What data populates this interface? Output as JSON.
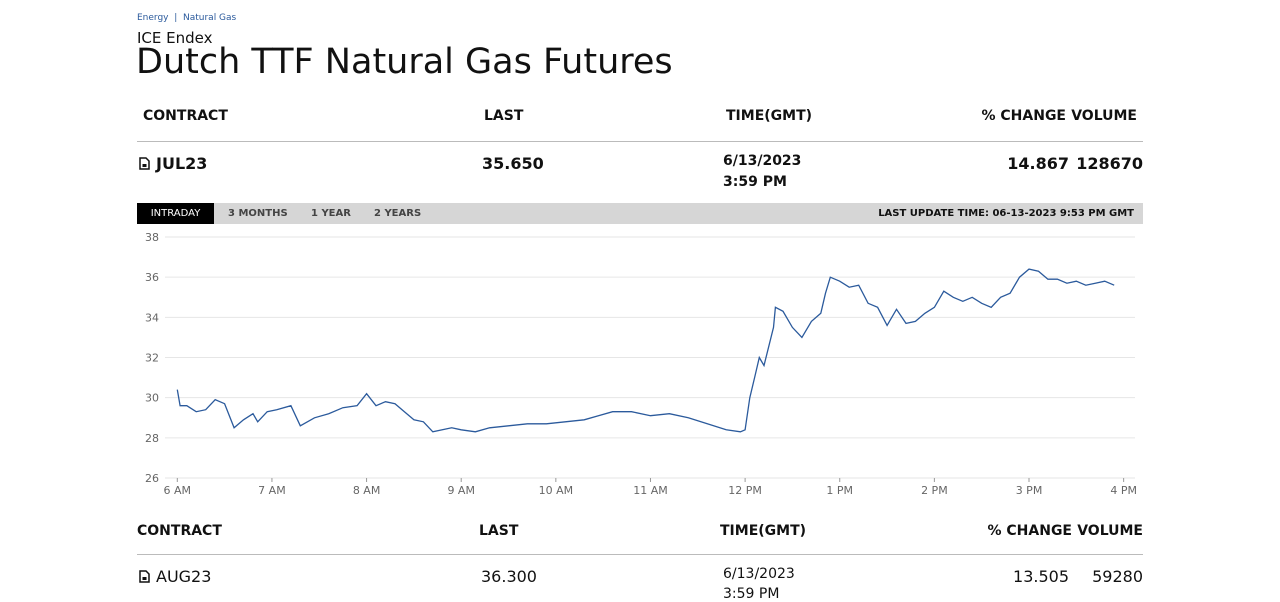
{
  "breadcrumb": [
    "Energy",
    "Natural Gas"
  ],
  "exchange": "ICE Endex",
  "title": "Dutch TTF Natural Gas Futures",
  "table": {
    "headers": [
      "CONTRACT",
      "LAST",
      "TIME(GMT)",
      "% CHANGE",
      "VOLUME"
    ],
    "row": {
      "contract": "JUL23",
      "last": "35.650",
      "date": "6/13/2023",
      "time": "3:59 PM",
      "change": "14.867",
      "volume": "128670"
    }
  },
  "tabs": [
    "INTRADAY",
    "3 MONTHS",
    "1 YEAR",
    "2 YEARS"
  ],
  "last_update": "LAST UPDATE TIME: 06-13-2023 9:53 PM GMT",
  "chart_data": {
    "type": "line",
    "x": [
      6.0,
      6.03,
      6.1,
      6.2,
      6.3,
      6.4,
      6.5,
      6.6,
      6.7,
      6.8,
      6.85,
      6.95,
      7.05,
      7.2,
      7.3,
      7.45,
      7.6,
      7.75,
      7.9,
      8.0,
      8.1,
      8.2,
      8.3,
      8.4,
      8.5,
      8.6,
      8.7,
      8.9,
      9.0,
      9.15,
      9.3,
      9.5,
      9.7,
      9.9,
      10.1,
      10.3,
      10.45,
      10.6,
      10.8,
      11.0,
      11.2,
      11.4,
      11.6,
      11.8,
      11.95,
      12.0,
      12.05,
      12.1,
      12.15,
      12.2,
      12.3,
      12.32,
      12.4,
      12.5,
      12.6,
      12.7,
      12.8,
      12.85,
      12.9,
      13.0,
      13.1,
      13.2,
      13.3,
      13.4,
      13.5,
      13.6,
      13.7,
      13.8,
      13.9,
      14.0,
      14.1,
      14.2,
      14.3,
      14.4,
      14.5,
      14.6,
      14.7,
      14.8,
      14.9,
      15.0,
      15.1,
      15.2,
      15.3,
      15.4,
      15.5,
      15.6,
      15.7,
      15.8,
      15.9
    ],
    "series": [
      {
        "color": "#2b5a9c",
        "values": [
          30.4,
          29.6,
          29.6,
          29.3,
          29.4,
          29.9,
          29.7,
          28.5,
          28.9,
          29.2,
          28.8,
          29.3,
          29.4,
          29.6,
          28.6,
          29.0,
          29.2,
          29.5,
          29.6,
          30.2,
          29.6,
          29.8,
          29.7,
          29.3,
          28.9,
          28.8,
          28.3,
          28.5,
          28.4,
          28.3,
          28.5,
          28.6,
          28.7,
          28.7,
          28.8,
          28.9,
          29.1,
          29.3,
          29.3,
          29.1,
          29.2,
          29.0,
          28.7,
          28.4,
          28.3,
          28.4,
          30.0,
          31.0,
          32.0,
          31.6,
          33.5,
          34.5,
          34.3,
          33.5,
          33.0,
          33.8,
          34.2,
          35.2,
          36.0,
          35.8,
          35.5,
          35.6,
          34.7,
          34.5,
          33.6,
          34.4,
          33.7,
          33.8,
          34.2,
          34.5,
          35.3,
          35.0,
          34.8,
          35.0,
          34.7,
          34.5,
          35.0,
          35.2,
          36.0,
          36.4,
          36.3,
          35.9,
          35.9,
          35.7,
          35.8,
          35.6,
          35.7,
          35.8,
          35.6
        ]
      }
    ],
    "xlim": [
      5.87,
      16.12
    ],
    "ylim": [
      26,
      38.2
    ],
    "xticks": [
      {
        "value": 6,
        "label": "6 AM"
      },
      {
        "value": 7,
        "label": "7 AM"
      },
      {
        "value": 8,
        "label": "8 AM"
      },
      {
        "value": 9,
        "label": "9 AM"
      },
      {
        "value": 10,
        "label": "10 AM"
      },
      {
        "value": 11,
        "label": "11 AM"
      },
      {
        "value": 12,
        "label": "12 PM"
      },
      {
        "value": 13,
        "label": "1 PM"
      },
      {
        "value": 14,
        "label": "2 PM"
      },
      {
        "value": 15,
        "label": "3 PM"
      },
      {
        "value": 16,
        "label": "4 PM"
      }
    ],
    "yticks": [
      26,
      28,
      30,
      32,
      34,
      36,
      38
    ],
    "grid": true
  },
  "table2": {
    "headers": [
      "CONTRACT",
      "LAST",
      "TIME(GMT)",
      "% CHANGE",
      "VOLUME"
    ],
    "row": {
      "contract": "AUG23",
      "last": "36.300",
      "date": "6/13/2023",
      "time": "3:59 PM",
      "change": "13.505",
      "volume": "59280"
    }
  }
}
